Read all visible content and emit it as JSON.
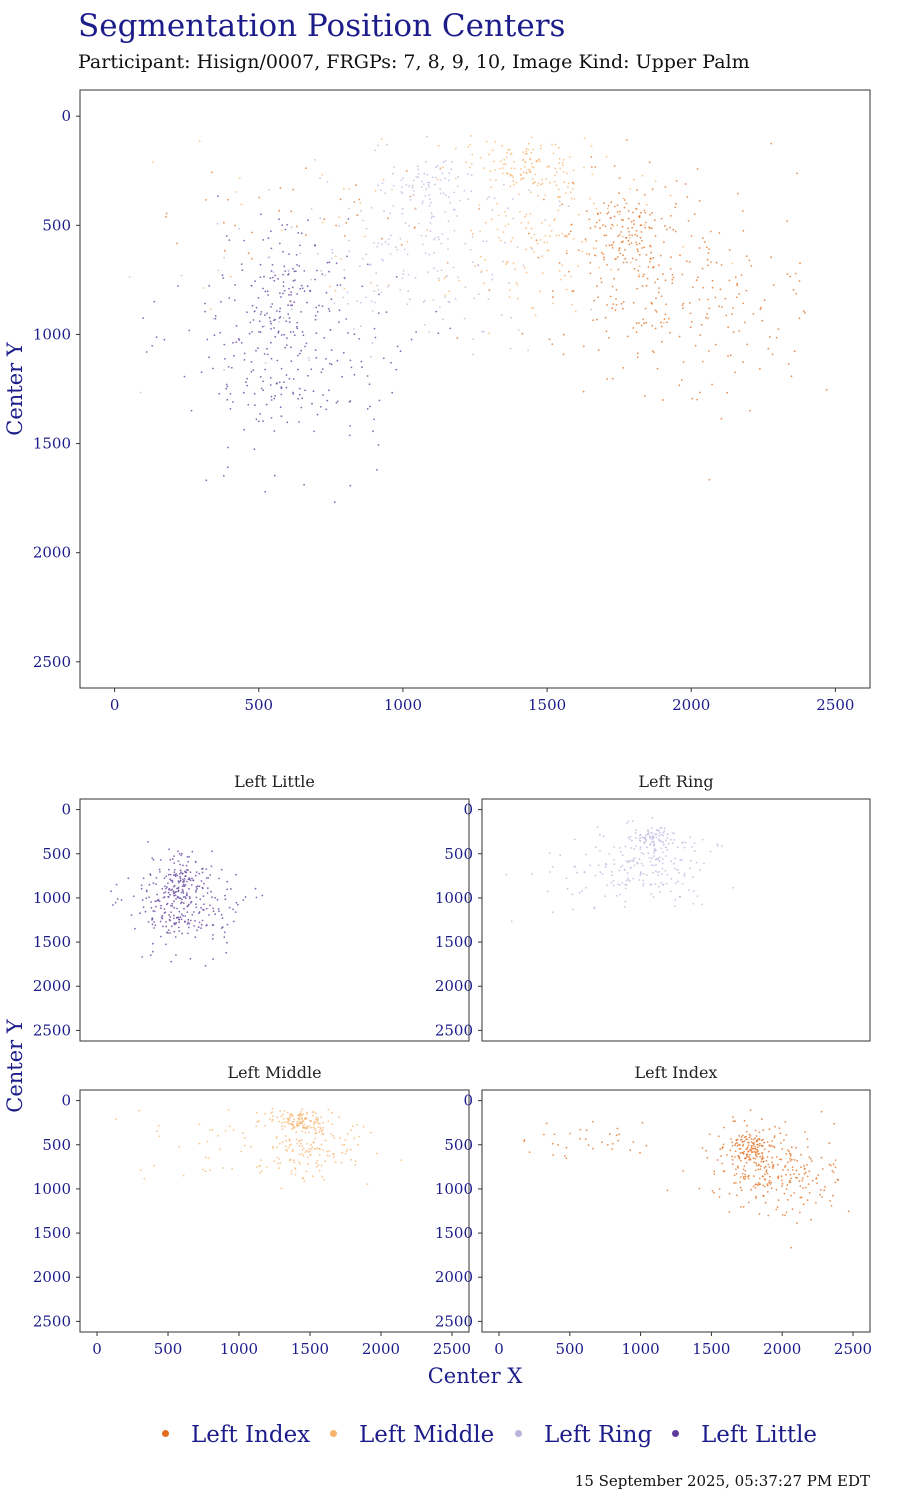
{
  "header": {
    "title": "Segmentation Position Centers",
    "subtitle": "Participant: Hisign/0007, FRGPs: 7, 8, 9, 10, Image Kind: Upper Palm"
  },
  "footer": {
    "timestamp": "15 September 2025, 05:37:27 PM EDT"
  },
  "colors": {
    "Left Index": "#e06c1c",
    "Left Middle": "#f7b46e",
    "Left Ring": "#b9b4de",
    "Left Little": "#5e3b9a",
    "text_accent": "#1c1c8a"
  },
  "legend": [
    {
      "label": "Left Index",
      "color": "#e06c1c"
    },
    {
      "label": "Left Middle",
      "color": "#f7b46e"
    },
    {
      "label": "Left Ring",
      "color": "#b9b4de"
    },
    {
      "label": "Left Little",
      "color": "#5e3b9a"
    }
  ],
  "chart_data": [
    {
      "type": "scatter",
      "name": "combined",
      "xlabel": "Center X",
      "ylabel": "Center Y",
      "xlim": [
        -120,
        2620
      ],
      "ylim": [
        -120,
        2620
      ],
      "y_reversed": true,
      "x_ticks": [
        0,
        500,
        1000,
        1500,
        2000,
        2500
      ],
      "y_ticks": [
        0,
        500,
        1000,
        1500,
        2000,
        2500
      ],
      "grid": false,
      "legend_position": "bottom",
      "series": [
        {
          "name": "Left Index",
          "clusters": [
            {
              "cx": 1770,
              "cy": 520,
              "sx": 60,
              "sy": 90,
              "n": 90
            },
            {
              "cx": 1850,
              "cy": 740,
              "sx": 190,
              "sy": 240,
              "n": 230
            },
            {
              "cx": 2150,
              "cy": 880,
              "sx": 200,
              "sy": 240,
              "n": 70
            },
            {
              "cx": 600,
              "cy": 420,
              "sx": 280,
              "sy": 110,
              "n": 35
            }
          ]
        },
        {
          "name": "Left Middle",
          "clusters": [
            {
              "cx": 1440,
              "cy": 230,
              "sx": 90,
              "sy": 55,
              "n": 110
            },
            {
              "cx": 1480,
              "cy": 500,
              "sx": 210,
              "sy": 220,
              "n": 170
            },
            {
              "cx": 800,
              "cy": 550,
              "sx": 350,
              "sy": 230,
              "n": 40
            }
          ]
        },
        {
          "name": "Left Ring",
          "clusters": [
            {
              "cx": 1060,
              "cy": 320,
              "sx": 75,
              "sy": 60,
              "n": 70
            },
            {
              "cx": 1050,
              "cy": 620,
              "sx": 230,
              "sy": 220,
              "n": 180
            },
            {
              "cx": 600,
              "cy": 750,
              "sx": 320,
              "sy": 230,
              "n": 30
            }
          ]
        },
        {
          "name": "Left Little",
          "clusters": [
            {
              "cx": 610,
              "cy": 760,
              "sx": 75,
              "sy": 110,
              "n": 90
            },
            {
              "cx": 600,
              "cy": 1070,
              "sx": 190,
              "sy": 240,
              "n": 260
            }
          ]
        }
      ]
    },
    {
      "type": "scatter",
      "name": "facets",
      "xlabel": "Center X",
      "ylabel": "Center Y",
      "xlim": [
        -120,
        2620
      ],
      "ylim": [
        -120,
        2620
      ],
      "y_reversed": true,
      "x_ticks": [
        0,
        500,
        1000,
        1500,
        2000,
        2500
      ],
      "y_ticks": [
        0,
        500,
        1000,
        1500,
        2000,
        2500
      ],
      "grid": false,
      "panels": [
        {
          "title": "Left Little",
          "series": "Left Little"
        },
        {
          "title": "Left Ring",
          "series": "Left Ring"
        },
        {
          "title": "Left Middle",
          "series": "Left Middle"
        },
        {
          "title": "Left Index",
          "series": "Left Index"
        }
      ]
    }
  ]
}
